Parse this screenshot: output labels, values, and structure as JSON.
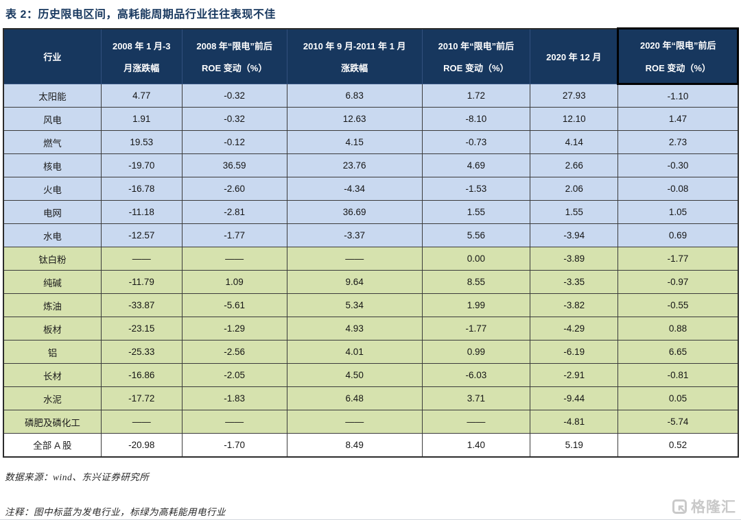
{
  "title": "表 2：历史限电区间，高耗能周期品行业往往表现不佳",
  "colors": {
    "header_bg": "#17375e",
    "title_text": "#17375e",
    "power_generation_row_bg": "#c9d9f0",
    "high_energy_row_bg": "#d6e2ae",
    "highlight_column_border": "#000000"
  },
  "table": {
    "header": [
      {
        "id": "industry",
        "lines": [
          "行业"
        ]
      },
      {
        "id": "chg-2008",
        "lines": [
          "2008 年 1 月-3",
          "月涨跌幅"
        ]
      },
      {
        "id": "roe-2008",
        "lines": [
          "2008 年“限电”前后",
          "ROE 变动（%）"
        ]
      },
      {
        "id": "chg-2010",
        "lines": [
          "2010 年 9 月-2011 年 1 月",
          "涨跌幅"
        ]
      },
      {
        "id": "roe-2010",
        "lines": [
          "2010 年“限电”前后",
          "ROE 变动（%）"
        ]
      },
      {
        "id": "dec-2020",
        "lines": [
          "2020 年 12 月"
        ]
      },
      {
        "id": "roe-2020",
        "lines": [
          "2020 年“限电”前后",
          "ROE 变动（%）"
        ]
      }
    ],
    "rows": [
      {
        "id": "solar",
        "group": "power",
        "industry": "太阳能",
        "values": [
          "4.77",
          "-0.32",
          "6.83",
          "1.72",
          "27.93",
          "-1.10"
        ]
      },
      {
        "id": "wind-power",
        "group": "power",
        "industry": "风电",
        "values": [
          "1.91",
          "-0.32",
          "12.63",
          "-8.10",
          "12.10",
          "1.47"
        ]
      },
      {
        "id": "gas",
        "group": "power",
        "industry": "燃气",
        "values": [
          "19.53",
          "-0.12",
          "4.15",
          "-0.73",
          "4.14",
          "2.73"
        ]
      },
      {
        "id": "nuclear",
        "group": "power",
        "industry": "核电",
        "values": [
          "-19.70",
          "36.59",
          "23.76",
          "4.69",
          "2.66",
          "-0.30"
        ]
      },
      {
        "id": "thermal",
        "group": "power",
        "industry": "火电",
        "values": [
          "-16.78",
          "-2.60",
          "-4.34",
          "-1.53",
          "2.06",
          "-0.08"
        ]
      },
      {
        "id": "grid",
        "group": "power",
        "industry": "电网",
        "values": [
          "-11.18",
          "-2.81",
          "36.69",
          "1.55",
          "1.55",
          "1.05"
        ]
      },
      {
        "id": "hydro",
        "group": "power",
        "industry": "水电",
        "values": [
          "-12.57",
          "-1.77",
          "-3.37",
          "5.56",
          "-3.94",
          "0.69"
        ]
      },
      {
        "id": "titanium-dioxide",
        "group": "energy",
        "industry": "钛白粉",
        "values": [
          "——",
          "——",
          "——",
          "0.00",
          "-3.89",
          "-1.77"
        ]
      },
      {
        "id": "soda-ash",
        "group": "energy",
        "industry": "纯碱",
        "values": [
          "-11.79",
          "1.09",
          "9.64",
          "8.55",
          "-3.35",
          "-0.97"
        ]
      },
      {
        "id": "refining",
        "group": "energy",
        "industry": "炼油",
        "values": [
          "-33.87",
          "-5.61",
          "5.34",
          "1.99",
          "-3.82",
          "-0.55"
        ]
      },
      {
        "id": "plate-steel",
        "group": "energy",
        "industry": "板材",
        "values": [
          "-23.15",
          "-1.29",
          "4.93",
          "-1.77",
          "-4.29",
          "0.88"
        ]
      },
      {
        "id": "aluminum",
        "group": "energy",
        "industry": "铝",
        "values": [
          "-25.33",
          "-2.56",
          "4.01",
          "0.99",
          "-6.19",
          "6.65"
        ]
      },
      {
        "id": "long-steel",
        "group": "energy",
        "industry": "长材",
        "values": [
          "-16.86",
          "-2.05",
          "4.50",
          "-6.03",
          "-2.91",
          "-0.81"
        ]
      },
      {
        "id": "cement",
        "group": "energy",
        "industry": "水泥",
        "values": [
          "-17.72",
          "-1.83",
          "6.48",
          "3.71",
          "-9.44",
          "0.05"
        ]
      },
      {
        "id": "phosphate",
        "group": "energy",
        "industry": "磷肥及磷化工",
        "values": [
          "——",
          "——",
          "——",
          "——",
          "-4.81",
          "-5.74"
        ]
      },
      {
        "id": "all-a-shares",
        "group": "all",
        "industry": "全部 A 股",
        "values": [
          "-20.98",
          "-1.70",
          "8.49",
          "1.40",
          "5.19",
          "0.52"
        ]
      }
    ]
  },
  "footer": {
    "source": "数据来源：wind、东兴证券研究所",
    "note": "注释：图中标蓝为发电行业，标绿为高耗能用电行业"
  },
  "watermark": {
    "label": "格隆汇"
  }
}
